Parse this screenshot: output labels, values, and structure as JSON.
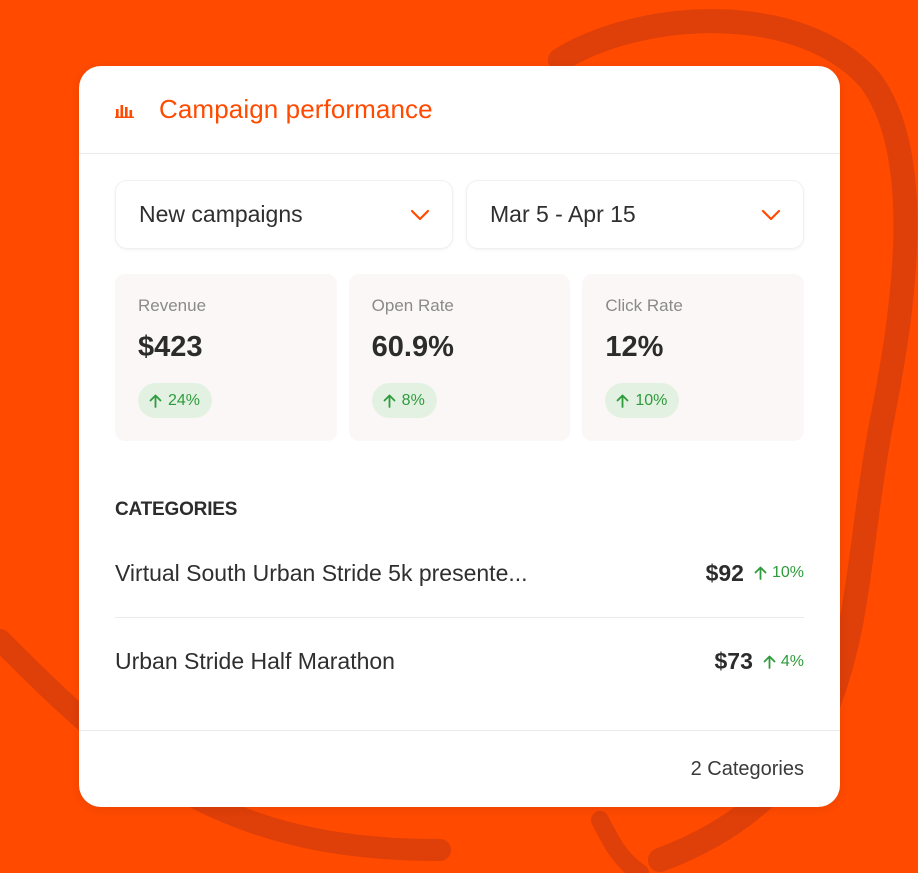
{
  "colors": {
    "background": "#FF4A00",
    "accent": "#FF4A00",
    "positive": "#2E9B3C",
    "positive_bg": "#E3F1E2"
  },
  "header": {
    "icon": "bar-chart-icon",
    "title": "Campaign performance"
  },
  "filters": {
    "campaign": {
      "value": "New campaigns",
      "icon": "chevron-down-icon"
    },
    "date_range": {
      "value": "Mar 5 - Apr 15",
      "icon": "chevron-down-icon"
    }
  },
  "stats": [
    {
      "label": "Revenue",
      "value": "$423",
      "change": "24%",
      "trend": "up"
    },
    {
      "label": "Open Rate",
      "value": "60.9%",
      "change": "8%",
      "trend": "up"
    },
    {
      "label": "Click Rate",
      "value": "12%",
      "change": "10%",
      "trend": "up"
    }
  ],
  "categories": {
    "title": "CATEGORIES",
    "items": [
      {
        "name": "Virtual South Urban Stride 5k presente...",
        "amount": "$92",
        "change": "10%",
        "trend": "up"
      },
      {
        "name": "Urban Stride Half Marathon",
        "amount": "$73",
        "change": "4%",
        "trend": "up"
      }
    ]
  },
  "footer": {
    "count_label": "2 Categories"
  }
}
